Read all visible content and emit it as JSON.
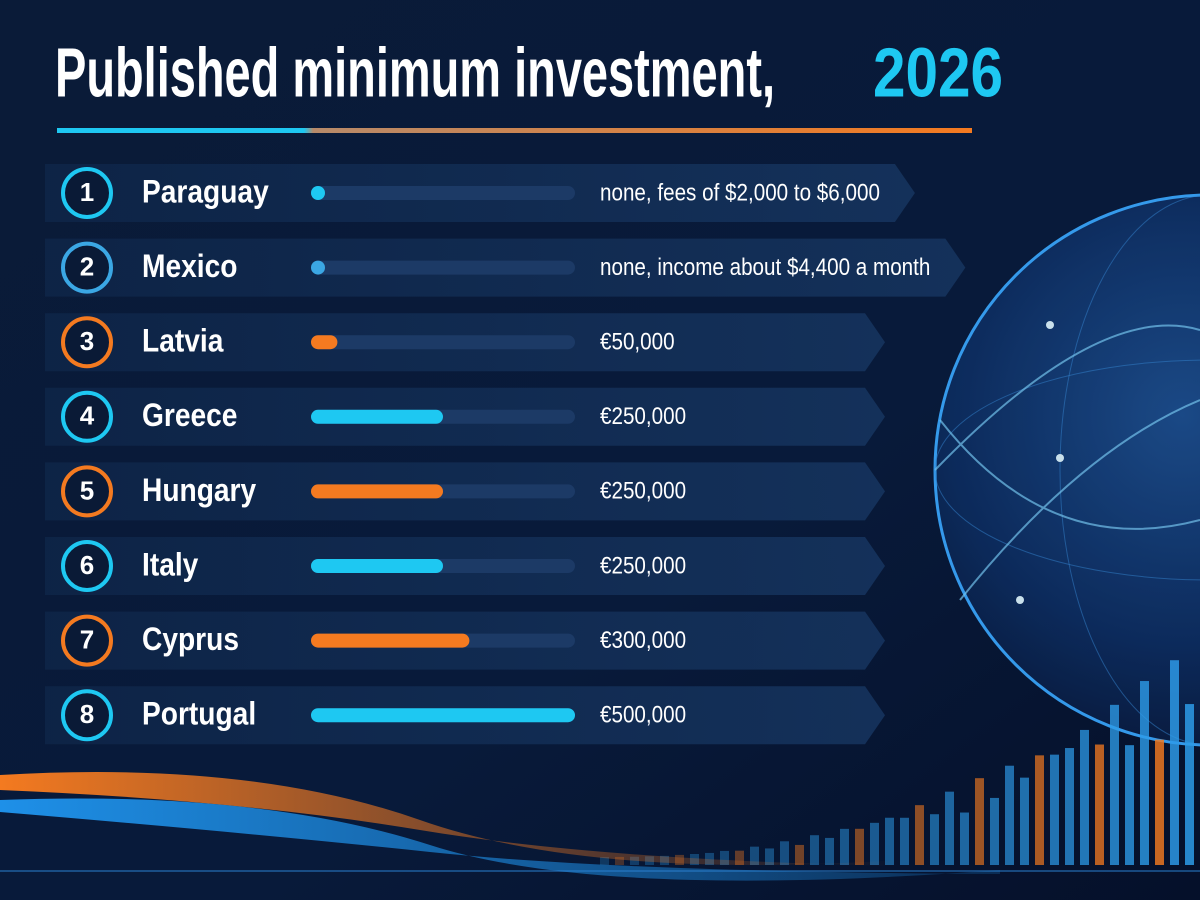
{
  "chart_data": {
    "type": "bar",
    "orientation": "horizontal",
    "title": "Published minimum investment,",
    "title_year": "2026",
    "ranks": [
      1,
      2,
      3,
      4,
      5,
      6,
      7,
      8
    ],
    "categories": [
      "Paraguay",
      "Mexico",
      "Latvia",
      "Greece",
      "Hungary",
      "Italy",
      "Cyprus",
      "Portugal"
    ],
    "values": [
      0,
      0,
      50000,
      250000,
      250000,
      250000,
      300000,
      500000
    ],
    "value_labels": [
      "none, fees of $2,000 to $6,000",
      "none, income about $4,400 a month",
      "€50,000",
      "€250,000",
      "€250,000",
      "€250,000",
      "€300,000",
      "€500,000"
    ],
    "colors": [
      "#1ec8f2",
      "#3ba7e4",
      "#f47a20",
      "#1ec8f2",
      "#f47a20",
      "#1ec8f2",
      "#f47a20",
      "#1ec8f2"
    ],
    "xlim": [
      0,
      500000
    ]
  }
}
